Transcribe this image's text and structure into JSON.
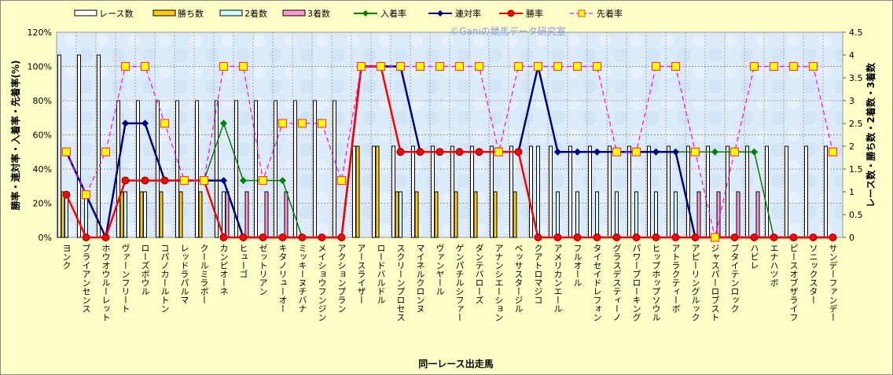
{
  "chart_data": {
    "type": "bar+line",
    "title": "",
    "watermark": "©Ganiの競馬データ研究室",
    "xlabel": "同一レース出走馬",
    "ylabel_left": "勝率・連対率・入着率・先着率(%)",
    "ylabel_right": "レース数・勝ち数・2着数・3着数",
    "ylim_left": [
      0,
      120
    ],
    "ylim_right": [
      0,
      4.5
    ],
    "yticks_left": [
      "0%",
      "20%",
      "40%",
      "60%",
      "80%",
      "100%",
      "120%"
    ],
    "yticks_right": [
      "0",
      "0.5",
      "1",
      "1.5",
      "2",
      "2.5",
      "3",
      "3.5",
      "4",
      "4.5"
    ],
    "grid": true,
    "legend_position": "top",
    "categories": [
      "ヨンク",
      "ブライアンセンス",
      "ホウオウルーレット",
      "ヴァーンフリート",
      "ローズボウル",
      "コパノカールトン",
      "レッドラパルマ",
      "クールミラボー",
      "カンピオーネ",
      "ヒューゴ",
      "ゼットリアン",
      "キタノリューオー",
      "ミッキーヌチバナ",
      "メイショウフンジン",
      "アクションプラン",
      "アースライザー",
      "ロードバルドル",
      "スクリーンプロセス",
      "マイネルクロンヌ",
      "ヴァンヤール",
      "ゲンパチルシファー",
      "ダンテバローズ",
      "アナンシエーション",
      "ベッサスタージル",
      "クアトロマジコ",
      "アメリカンエール",
      "フルオール",
      "タイセイドレフォン",
      "グラスデスティーノ",
      "パワーブローキング",
      "ヒップホップソウル",
      "アトラクティーボ",
      "アピーリングルック",
      "ジャスパーロブスト",
      "ブタイテンロック",
      "ハピレ",
      "エナハツボ",
      "ピースオブザライフ",
      "ソニックスター",
      "サンデーファンデー"
    ],
    "bar_series": [
      {
        "name": "レース数",
        "axis": "right",
        "color": "#FFFFFF",
        "values": [
          4,
          4,
          4,
          3,
          3,
          3,
          3,
          3,
          3,
          3,
          3,
          3,
          3,
          3,
          3,
          2,
          2,
          2,
          2,
          2,
          2,
          2,
          2,
          2,
          2,
          2,
          2,
          2,
          2,
          2,
          2,
          2,
          2,
          2,
          2,
          2,
          2,
          2,
          2,
          2
        ]
      },
      {
        "name": "勝ち数",
        "axis": "right",
        "color": "#FFCC00",
        "values": [
          1,
          0,
          0,
          1,
          1,
          1,
          1,
          1,
          0,
          0,
          0,
          0,
          0,
          0,
          0,
          2,
          2,
          1,
          1,
          1,
          1,
          1,
          1,
          1,
          0,
          0,
          0,
          0,
          0,
          0,
          0,
          0,
          0,
          0,
          0,
          0,
          0,
          0,
          0,
          0
        ]
      },
      {
        "name": "2着数",
        "axis": "right",
        "color": "#CCFFFF",
        "values": [
          1,
          1,
          0,
          1,
          1,
          0,
          0,
          0,
          1,
          0,
          0,
          0,
          0,
          0,
          0,
          0,
          0,
          1,
          0,
          0,
          0,
          0,
          0,
          0,
          2,
          1,
          1,
          1,
          1,
          1,
          1,
          1,
          0,
          0,
          0,
          0,
          0,
          0,
          0,
          0
        ]
      },
      {
        "name": "3着数",
        "axis": "right",
        "color": "#FF99CC",
        "values": [
          0,
          0,
          0,
          0,
          0,
          0,
          0,
          0,
          1,
          1,
          1,
          1,
          0,
          0,
          0,
          0,
          0,
          0,
          0,
          0,
          0,
          0,
          0,
          0,
          0,
          0,
          0,
          0,
          0,
          0,
          0,
          0,
          1,
          1,
          1,
          1,
          0,
          0,
          0,
          0
        ]
      }
    ],
    "line_series": [
      {
        "name": "入着率",
        "axis": "left",
        "color": "#008000",
        "marker": "diamond",
        "values": [
          50,
          25,
          0,
          66.7,
          66.7,
          33.3,
          33.3,
          33.3,
          66.7,
          33.3,
          33.3,
          33.3,
          0,
          0,
          0,
          100,
          100,
          100,
          50,
          50,
          50,
          50,
          50,
          50,
          100,
          50,
          50,
          50,
          50,
          50,
          50,
          50,
          50,
          50,
          50,
          50,
          0,
          0,
          0,
          0
        ]
      },
      {
        "name": "連対率",
        "axis": "left",
        "color": "#000080",
        "marker": "diamond",
        "values": [
          50,
          25,
          0,
          66.7,
          66.7,
          33.3,
          33.3,
          33.3,
          33.3,
          0,
          0,
          0,
          0,
          0,
          0,
          100,
          100,
          100,
          50,
          50,
          50,
          50,
          50,
          50,
          100,
          50,
          50,
          50,
          50,
          50,
          50,
          50,
          0,
          0,
          0,
          0,
          0,
          0,
          0,
          0
        ]
      },
      {
        "name": "勝率",
        "axis": "left",
        "color": "#FF0000",
        "marker": "circle",
        "values": [
          25,
          0,
          0,
          33.3,
          33.3,
          33.3,
          33.3,
          33.3,
          0,
          0,
          0,
          0,
          0,
          0,
          0,
          100,
          100,
          50,
          50,
          50,
          50,
          50,
          50,
          50,
          0,
          0,
          0,
          0,
          0,
          0,
          0,
          0,
          0,
          0,
          0,
          0,
          0,
          0,
          0,
          0
        ]
      },
      {
        "name": "先着率",
        "axis": "left",
        "color": "#FF00FF",
        "marker": "square",
        "values": [
          50,
          25,
          50,
          100,
          100,
          66.7,
          33.3,
          33.3,
          100,
          100,
          33.3,
          66.7,
          66.7,
          66.7,
          33.3,
          100,
          100,
          100,
          100,
          100,
          100,
          100,
          50,
          100,
          100,
          100,
          100,
          100,
          50,
          50,
          100,
          100,
          50,
          0,
          50,
          100,
          100,
          100,
          100,
          50
        ]
      }
    ]
  }
}
